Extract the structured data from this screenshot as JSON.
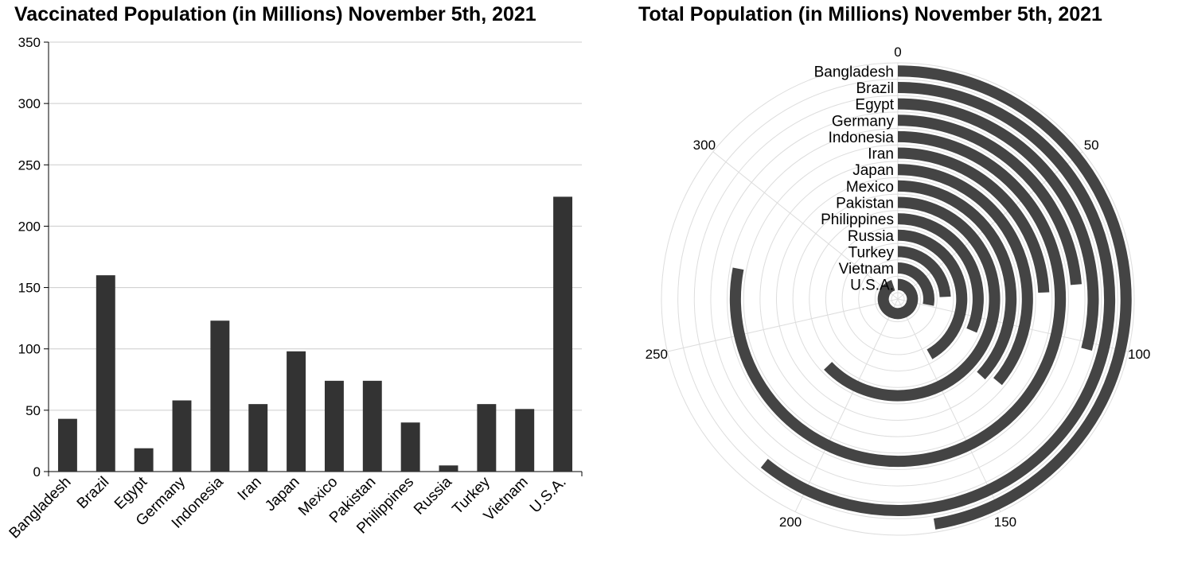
{
  "charts": {
    "bar": {
      "title": "Vaccinated Population (in Millions) November 5th, 2021"
    },
    "radial": {
      "title": "Total Population (in Millions) November 5th, 2021"
    }
  },
  "chart_data": [
    {
      "type": "bar",
      "title": "Vaccinated Population (in Millions) November 5th, 2021",
      "categories": [
        "Bangladesh",
        "Brazil",
        "Egypt",
        "Germany",
        "Indonesia",
        "Iran",
        "Japan",
        "Mexico",
        "Pakistan",
        "Philippines",
        "Russia",
        "Turkey",
        "Vietnam",
        "U.S.A."
      ],
      "values": [
        43,
        160,
        19,
        58,
        123,
        55,
        98,
        74,
        74,
        40,
        5,
        55,
        51,
        224
      ],
      "ylim": [
        0,
        350
      ],
      "yticks": [
        0,
        50,
        100,
        150,
        200,
        250,
        300,
        350
      ],
      "grid": true,
      "bar_color": "#333333"
    },
    {
      "type": "radial-bar",
      "title": "Total Population (in Millions) November 5th, 2021",
      "categories": [
        "Bangladesh",
        "Brazil",
        "Egypt",
        "Germany",
        "Indonesia",
        "Iran",
        "Japan",
        "Mexico",
        "Pakistan",
        "Philippines",
        "Russia",
        "Turkey",
        "Vietnam",
        "U.S.A."
      ],
      "values": [
        166,
        213,
        102,
        83,
        273,
        85,
        126,
        129,
        220,
        110,
        146,
        85,
        98,
        332
      ],
      "angle_range": [
        0,
        350
      ],
      "angle_ticks": [
        0,
        50,
        100,
        150,
        200,
        250,
        300
      ],
      "grid": true,
      "bar_color": "#444444"
    }
  ]
}
